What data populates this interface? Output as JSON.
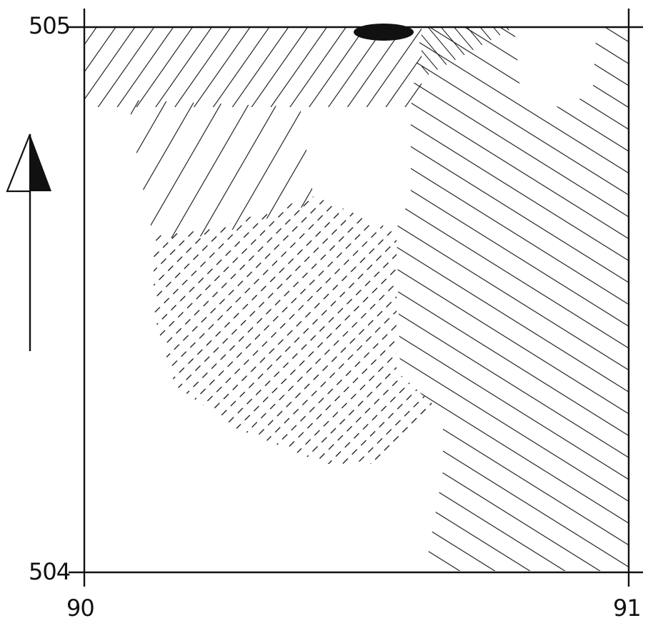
{
  "map": {
    "grid_labels": {
      "north_top": "505",
      "north_bottom": "504",
      "east_left": "90",
      "east_right": "91"
    },
    "north_arrow": {
      "icon": "north-arrow-icon"
    },
    "colors": {
      "ink": "#111111",
      "paper": "#ffffff"
    },
    "zones": [
      {
        "name": "top-band",
        "pattern": "dense-diagonal-hatch"
      },
      {
        "name": "northwest-zone",
        "pattern": "sparse-diagonal-hatch"
      },
      {
        "name": "central-zone",
        "pattern": "dashed-hatch"
      },
      {
        "name": "eastern-zone",
        "pattern": "opposite-diagonal-hatch"
      },
      {
        "name": "top-dark-spot",
        "pattern": "solid-fill"
      }
    ]
  }
}
